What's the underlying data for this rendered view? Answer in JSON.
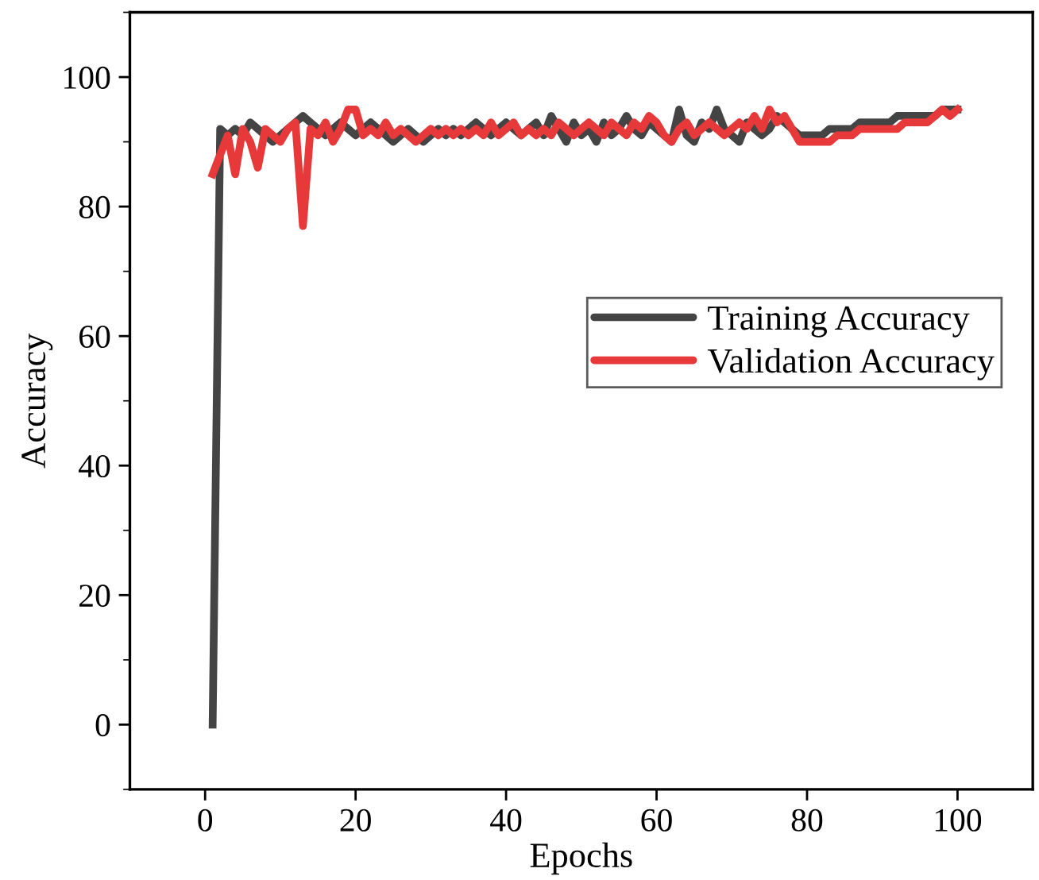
{
  "chart_data": {
    "type": "line",
    "xlabel": "Epochs",
    "ylabel": "Accuracy",
    "x": [
      1,
      2,
      3,
      4,
      5,
      6,
      7,
      8,
      9,
      10,
      11,
      12,
      13,
      14,
      15,
      16,
      17,
      18,
      19,
      20,
      21,
      22,
      23,
      24,
      25,
      26,
      27,
      28,
      29,
      30,
      31,
      32,
      33,
      34,
      35,
      36,
      37,
      38,
      39,
      40,
      41,
      42,
      43,
      44,
      45,
      46,
      47,
      48,
      49,
      50,
      51,
      52,
      53,
      54,
      55,
      56,
      57,
      58,
      59,
      60,
      61,
      62,
      63,
      64,
      65,
      66,
      67,
      68,
      69,
      70,
      71,
      72,
      73,
      74,
      75,
      76,
      77,
      78,
      79,
      80,
      81,
      82,
      83,
      84,
      85,
      86,
      87,
      88,
      89,
      90,
      91,
      92,
      93,
      94,
      95,
      96,
      97,
      98,
      99,
      100
    ],
    "series": [
      {
        "name": "Training Accuracy",
        "color": "#444444",
        "values": [
          0,
          92,
          91,
          92,
          91,
          93,
          92,
          91,
          90,
          91,
          92,
          93,
          94,
          93,
          92,
          91,
          92,
          93,
          92,
          91,
          92,
          93,
          92,
          91,
          90,
          91,
          92,
          91,
          90,
          91,
          92,
          91,
          92,
          91,
          92,
          93,
          92,
          91,
          92,
          93,
          92,
          91,
          92,
          93,
          91,
          94,
          92,
          90,
          93,
          91,
          92,
          90,
          93,
          91,
          92,
          94,
          92,
          91,
          93,
          92,
          91,
          90,
          95,
          91,
          90,
          93,
          92,
          95,
          92,
          91,
          90,
          93,
          92,
          91,
          92,
          94,
          93,
          92,
          91,
          91,
          91,
          91,
          92,
          92,
          92,
          92,
          93,
          93,
          93,
          93,
          93,
          94,
          94,
          94,
          94,
          94,
          94,
          95,
          95,
          95
        ]
      },
      {
        "name": "Validation Accuracy",
        "color": "#e8393a",
        "values": [
          85,
          88,
          91,
          85,
          92,
          90,
          86,
          92,
          91,
          90,
          92,
          93,
          77,
          92,
          91,
          93,
          90,
          92,
          95,
          95,
          91,
          92,
          91,
          93,
          91,
          92,
          91,
          90,
          91,
          92,
          91,
          92,
          91,
          92,
          91,
          92,
          91,
          93,
          91,
          92,
          93,
          91,
          92,
          91,
          92,
          91,
          93,
          92,
          91,
          92,
          93,
          92,
          91,
          93,
          92,
          91,
          93,
          92,
          94,
          93,
          91,
          90,
          92,
          93,
          91,
          92,
          93,
          92,
          91,
          92,
          93,
          92,
          94,
          92,
          95,
          93,
          94,
          92,
          90,
          90,
          90,
          90,
          90,
          91,
          91,
          91,
          92,
          92,
          92,
          92,
          92,
          92,
          93,
          93,
          93,
          93,
          94,
          95,
          94,
          95
        ]
      }
    ],
    "xlim": [
      -10,
      110
    ],
    "ylim": [
      -10,
      110
    ],
    "xticks": [
      0,
      20,
      40,
      60,
      80,
      100
    ],
    "yticks": [
      0,
      20,
      40,
      60,
      80,
      100
    ],
    "grid": false,
    "legend": "right",
    "marker": "none",
    "line_style": "solid"
  }
}
